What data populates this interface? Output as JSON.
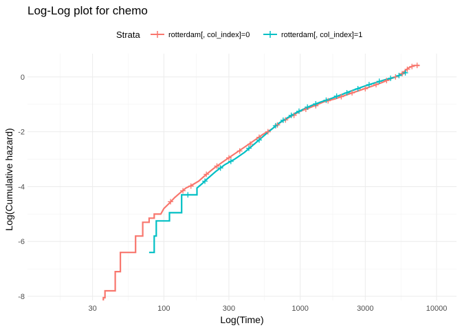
{
  "chart_data": {
    "type": "line",
    "title": "Log-Log plot for chemo",
    "xlabel": "Log(Time)",
    "ylabel": "Log(Cumulative hazard)",
    "x_scale": "log10",
    "xlim": [
      10,
      14000
    ],
    "ylim": [
      -8.15,
      0.85
    ],
    "x_ticks": [
      30,
      100,
      300,
      1000,
      3000,
      10000
    ],
    "x_tick_labels": [
      "30",
      "100",
      "300",
      "1000",
      "3000",
      "10000"
    ],
    "y_ticks": [
      -8,
      -6,
      -4,
      -2,
      0
    ],
    "y_tick_labels": [
      "-8",
      "-6",
      "-4",
      "-2",
      "0"
    ],
    "grid": true,
    "legend": {
      "title": "Strata",
      "position": "top"
    },
    "series": [
      {
        "name": "rotterdam[, col_index]=0",
        "color": "#F8766D",
        "points": [
          [
            36,
            -8.15
          ],
          [
            36,
            -8.05
          ],
          [
            37,
            -8.05
          ],
          [
            37,
            -7.8
          ],
          [
            44,
            -7.8
          ],
          [
            44,
            -7.1
          ],
          [
            48,
            -7.1
          ],
          [
            48,
            -6.4
          ],
          [
            62,
            -6.4
          ],
          [
            62,
            -5.8
          ],
          [
            70,
            -5.8
          ],
          [
            70,
            -5.3
          ],
          [
            78,
            -5.3
          ],
          [
            78,
            -5.15
          ],
          [
            85,
            -5.15
          ],
          [
            85,
            -5.0
          ],
          [
            95,
            -5.0
          ],
          [
            100,
            -4.8
          ],
          [
            110,
            -4.6
          ],
          [
            120,
            -4.4
          ],
          [
            130,
            -4.25
          ],
          [
            145,
            -4.05
          ],
          [
            160,
            -3.95
          ],
          [
            180,
            -3.8
          ],
          [
            200,
            -3.6
          ],
          [
            230,
            -3.35
          ],
          [
            270,
            -3.1
          ],
          [
            320,
            -2.85
          ],
          [
            380,
            -2.6
          ],
          [
            450,
            -2.35
          ],
          [
            530,
            -2.1
          ],
          [
            620,
            -1.9
          ],
          [
            720,
            -1.65
          ],
          [
            850,
            -1.45
          ],
          [
            1000,
            -1.25
          ],
          [
            1200,
            -1.1
          ],
          [
            1500,
            -0.9
          ],
          [
            1800,
            -0.8
          ],
          [
            2200,
            -0.65
          ],
          [
            2700,
            -0.5
          ],
          [
            3300,
            -0.35
          ],
          [
            4000,
            -0.2
          ],
          [
            4700,
            -0.05
          ],
          [
            5300,
            0.05
          ],
          [
            5800,
            0.2
          ],
          [
            6200,
            0.32
          ],
          [
            6800,
            0.42
          ],
          [
            7500,
            0.42
          ]
        ],
        "censor_marks": [
          [
            112,
            -4.55
          ],
          [
            138,
            -4.15
          ],
          [
            158,
            -3.98
          ],
          [
            205,
            -3.55
          ],
          [
            245,
            -3.25
          ],
          [
            300,
            -2.95
          ],
          [
            360,
            -2.7
          ],
          [
            430,
            -2.45
          ],
          [
            500,
            -2.2
          ],
          [
            580,
            -2.0
          ],
          [
            680,
            -1.75
          ],
          [
            780,
            -1.57
          ],
          [
            900,
            -1.4
          ],
          [
            1100,
            -1.18
          ],
          [
            1300,
            -1.05
          ],
          [
            1600,
            -0.87
          ],
          [
            2000,
            -0.72
          ],
          [
            2400,
            -0.58
          ],
          [
            3000,
            -0.43
          ],
          [
            3600,
            -0.28
          ],
          [
            4300,
            -0.13
          ],
          [
            5000,
            0.0
          ],
          [
            5600,
            0.12
          ],
          [
            6100,
            0.28
          ],
          [
            6600,
            0.38
          ],
          [
            7200,
            0.42
          ]
        ]
      },
      {
        "name": "rotterdam[, col_index]=1",
        "color": "#00BFC4",
        "points": [
          [
            78,
            -6.4
          ],
          [
            85,
            -6.4
          ],
          [
            85,
            -5.8
          ],
          [
            88,
            -5.8
          ],
          [
            88,
            -5.25
          ],
          [
            110,
            -5.25
          ],
          [
            110,
            -4.95
          ],
          [
            135,
            -4.95
          ],
          [
            135,
            -4.3
          ],
          [
            175,
            -4.3
          ],
          [
            175,
            -4.05
          ],
          [
            190,
            -3.9
          ],
          [
            210,
            -3.7
          ],
          [
            240,
            -3.45
          ],
          [
            280,
            -3.2
          ],
          [
            330,
            -3.0
          ],
          [
            390,
            -2.75
          ],
          [
            460,
            -2.45
          ],
          [
            540,
            -2.15
          ],
          [
            620,
            -1.9
          ],
          [
            700,
            -1.68
          ],
          [
            800,
            -1.5
          ],
          [
            920,
            -1.32
          ],
          [
            1050,
            -1.18
          ],
          [
            1200,
            -1.05
          ],
          [
            1400,
            -0.92
          ],
          [
            1700,
            -0.78
          ],
          [
            2000,
            -0.65
          ],
          [
            2400,
            -0.5
          ],
          [
            2900,
            -0.35
          ],
          [
            3500,
            -0.22
          ],
          [
            4200,
            -0.1
          ],
          [
            5000,
            0.0
          ],
          [
            5500,
            0.08
          ],
          [
            6000,
            0.18
          ]
        ],
        "censor_marks": [
          [
            150,
            -4.3
          ],
          [
            200,
            -3.8
          ],
          [
            260,
            -3.32
          ],
          [
            310,
            -3.08
          ],
          [
            420,
            -2.6
          ],
          [
            500,
            -2.3
          ],
          [
            660,
            -1.78
          ],
          [
            750,
            -1.58
          ],
          [
            860,
            -1.4
          ],
          [
            980,
            -1.25
          ],
          [
            1130,
            -1.1
          ],
          [
            1300,
            -0.98
          ],
          [
            1550,
            -0.85
          ],
          [
            1850,
            -0.7
          ],
          [
            2200,
            -0.58
          ],
          [
            2650,
            -0.43
          ],
          [
            3200,
            -0.28
          ],
          [
            3800,
            -0.16
          ],
          [
            4600,
            -0.05
          ],
          [
            5300,
            0.05
          ],
          [
            5900,
            0.15
          ]
        ]
      }
    ]
  }
}
